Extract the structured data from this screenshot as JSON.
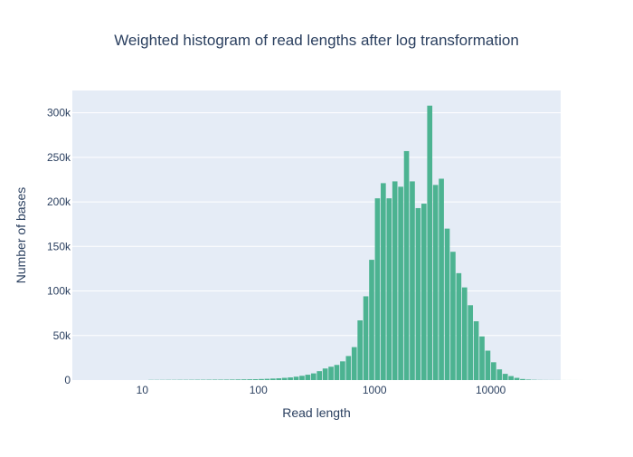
{
  "chart_data": {
    "type": "bar",
    "title": "Weighted histogram of read lengths after log transformation",
    "xlabel": "Read length",
    "ylabel": "Number of bases",
    "x_scale": "log",
    "xlim": [
      2.5,
      40000
    ],
    "ylim": [
      0,
      325000
    ],
    "grid": true,
    "x_ticks": [
      {
        "value": 10,
        "label": "10"
      },
      {
        "value": 100,
        "label": "100"
      },
      {
        "value": 1000,
        "label": "1000"
      },
      {
        "value": 10000,
        "label": "10000"
      }
    ],
    "y_ticks": [
      {
        "value": 0,
        "label": "0"
      },
      {
        "value": 50000,
        "label": "50k"
      },
      {
        "value": 100000,
        "label": "100k"
      },
      {
        "value": 150000,
        "label": "150k"
      },
      {
        "value": 200000,
        "label": "200k"
      },
      {
        "value": 250000,
        "label": "250k"
      },
      {
        "value": 300000,
        "label": "300k"
      }
    ],
    "bar_color": "#4cb391",
    "bins_log10": {
      "start": 1.05,
      "width": 0.05
    },
    "values": [
      200,
      200,
      200,
      250,
      250,
      300,
      300,
      350,
      400,
      400,
      450,
      500,
      500,
      550,
      600,
      700,
      800,
      900,
      1000,
      1200,
      1400,
      1700,
      2000,
      2500,
      3000,
      3800,
      4800,
      6000,
      7500,
      10000,
      13000,
      15000,
      17000,
      21000,
      27000,
      37000,
      67000,
      94000,
      135000,
      204000,
      221000,
      204000,
      223000,
      217000,
      257000,
      223000,
      193000,
      198000,
      308000,
      219000,
      226000,
      170000,
      144000,
      120000,
      104000,
      84000,
      66000,
      49000,
      33000,
      20000,
      12000,
      7000,
      4500,
      2500,
      1200,
      600,
      300,
      150,
      100,
      80,
      50,
      40,
      30,
      20,
      10
    ]
  }
}
